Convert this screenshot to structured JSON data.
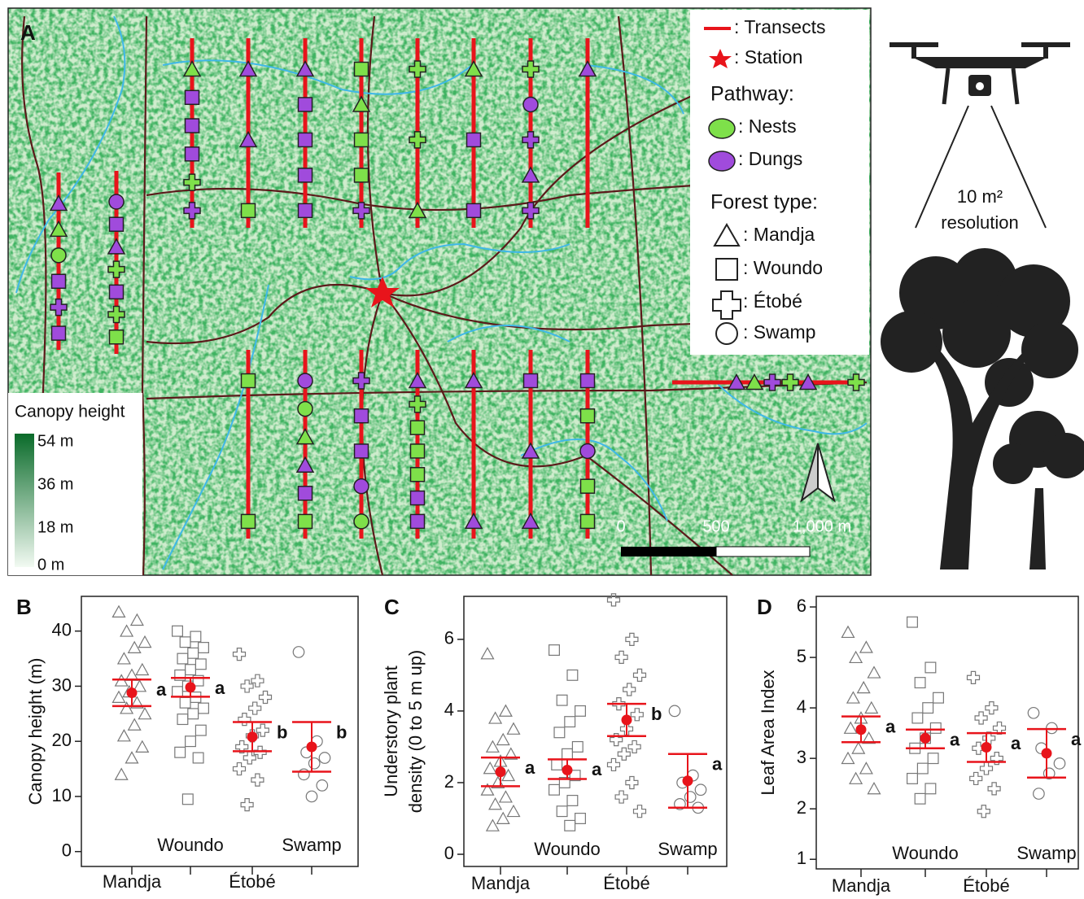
{
  "map": {
    "panel": "A",
    "transects": ": Transects",
    "station": ": Station",
    "pathway_title": "Pathway:",
    "nests": ": Nests",
    "dungs": ": Dungs",
    "forest_title": "Forest type:",
    "forest": [
      ": Mandja",
      ": Woundo",
      ": Étobé",
      ": Swamp"
    ],
    "colorbar_title": "Canopy height",
    "colorbar_labels": [
      "54 m",
      "36 m",
      "18 m",
      "0 m"
    ],
    "scale_labels": [
      "0",
      "500",
      "1,000 m"
    ]
  },
  "drone": {
    "line1": "10 m²",
    "line2": "resolution"
  },
  "chart_data": [
    {
      "type": "dotplot",
      "panel": "B",
      "ylabel": [
        "Canopy height (m)"
      ],
      "categories": [
        "Mandja",
        "Woundo",
        "Étobé",
        "Swamp"
      ],
      "markers": [
        "triangle",
        "square",
        "plus",
        "circle"
      ],
      "points": [
        [
          43.5,
          42,
          40,
          38,
          37,
          35,
          33,
          32,
          31,
          30,
          29,
          28,
          27,
          26,
          25,
          23,
          21,
          19,
          17,
          14
        ],
        [
          40,
          39,
          38,
          37,
          36,
          35,
          34,
          33,
          32,
          31,
          30,
          29,
          28,
          27,
          26,
          25,
          24,
          22,
          20,
          18,
          17,
          9.5
        ],
        [
          35.8,
          31,
          30,
          28,
          26,
          24,
          22,
          21,
          19,
          18,
          17,
          15,
          13,
          8.5
        ],
        [
          36.2,
          20,
          18,
          17,
          16,
          14,
          12,
          10
        ]
      ],
      "means": [
        28.8,
        29.8,
        20.8,
        19
      ],
      "ci_low": [
        26.4,
        28.1,
        18.2,
        14.5
      ],
      "ci_high": [
        31.2,
        31.5,
        23.5,
        23.5
      ],
      "letters": [
        "a",
        "a",
        "b",
        "b"
      ],
      "color": "#e8141b",
      "ylim": [
        -2.7,
        46.3
      ],
      "yticks": [
        0,
        10,
        20,
        30,
        40
      ]
    },
    {
      "type": "dotplot",
      "panel": "C",
      "ylabel": [
        "Understory plant",
        "density (0 to 5 m up)"
      ],
      "categories": [
        "Mandja",
        "Woundo",
        "Étobé",
        "Swamp"
      ],
      "markers": [
        "triangle",
        "square",
        "plus",
        "circle"
      ],
      "points": [
        [
          5.6,
          4,
          3.8,
          3.5,
          3.2,
          3,
          2.8,
          2.6,
          2.4,
          2.2,
          2,
          1.8,
          1.6,
          1.4,
          1.2,
          1,
          0.8
        ],
        [
          5.7,
          5,
          4.3,
          4,
          3.7,
          3.4,
          3,
          2.8,
          2.5,
          2.2,
          2,
          1.8,
          1.5,
          1.2,
          1,
          0.8
        ],
        [
          7.1,
          6,
          5.5,
          5,
          4.6,
          4.2,
          3.9,
          3.5,
          3.2,
          3,
          2.8,
          2.5,
          2,
          1.6,
          1.2
        ],
        [
          4,
          2.2,
          2,
          1.8,
          1.6,
          1.4,
          1.3
        ]
      ],
      "means": [
        2.3,
        2.35,
        3.75,
        2.05
      ],
      "ci_low": [
        1.9,
        2.1,
        3.3,
        1.3
      ],
      "ci_high": [
        2.7,
        2.65,
        4.2,
        2.8
      ],
      "letters": [
        "a",
        "a",
        "b",
        "a"
      ],
      "color": "#e8141b",
      "ylim": [
        -0.34,
        7.2
      ],
      "yticks": [
        0,
        2,
        4,
        6
      ]
    },
    {
      "type": "dotplot",
      "panel": "D",
      "ylabel": [
        "Leaf Area Index"
      ],
      "categories": [
        "Mandja",
        "Woundo",
        "Étobé",
        "Swamp"
      ],
      "markers": [
        "triangle",
        "square",
        "plus",
        "circle"
      ],
      "points": [
        [
          5.5,
          5.2,
          5,
          4.7,
          4.4,
          4.2,
          4,
          3.8,
          3.6,
          3.4,
          3.2,
          3,
          2.8,
          2.6,
          2.4
        ],
        [
          5.7,
          4.8,
          4.5,
          4.2,
          4,
          3.8,
          3.6,
          3.4,
          3.2,
          3,
          2.8,
          2.6,
          2.4,
          2.2
        ],
        [
          4.6,
          4,
          3.8,
          3.6,
          3.4,
          3.2,
          3,
          2.8,
          2.6,
          2.4,
          1.95
        ],
        [
          3.9,
          3.6,
          3.2,
          2.9,
          2.7,
          2.3
        ]
      ],
      "means": [
        3.57,
        3.4,
        3.22,
        3.1
      ],
      "ci_low": [
        3.32,
        3.2,
        2.93,
        2.62
      ],
      "ci_high": [
        3.83,
        3.57,
        3.5,
        3.58
      ],
      "letters": [
        "a",
        "a",
        "a",
        "a"
      ],
      "color": "#e8141b",
      "ylim": [
        0.81,
        6.21
      ],
      "yticks": [
        1,
        2,
        3,
        4,
        5,
        6
      ]
    }
  ]
}
